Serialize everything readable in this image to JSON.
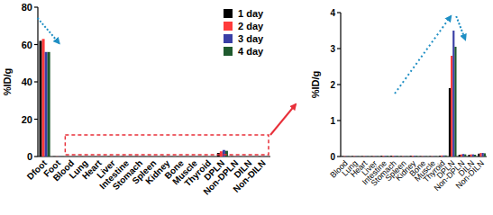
{
  "chart_data": [
    {
      "type": "bar",
      "y_label": "%ID/g",
      "categories": [
        "Dfoot",
        "Foot",
        "Blood",
        "Lung",
        "Heart",
        "Liver",
        "Intestine",
        "Stomach",
        "Spleen",
        "Kidney",
        "Bone",
        "Muscle",
        "Thyroid",
        "DPLN",
        "Non-DPLN",
        "DILN",
        "Non-DILN"
      ],
      "series": [
        {
          "name": "1 day",
          "color": "#000000",
          "values": [
            62,
            0.1,
            0.05,
            0.05,
            0.05,
            0.1,
            0.1,
            0.1,
            0.05,
            0.1,
            0.05,
            0.05,
            0.05,
            1.9,
            0.1,
            0.05,
            0.1
          ]
        },
        {
          "name": "2 day",
          "color": "#ff3b3b",
          "values": [
            63,
            0.1,
            0.05,
            0.05,
            0.05,
            0.1,
            0.1,
            0.1,
            0.05,
            0.1,
            0.05,
            0.05,
            0.05,
            2.8,
            0.1,
            0.05,
            0.1
          ]
        },
        {
          "name": "3 day",
          "color": "#3a3fa6",
          "values": [
            56,
            0.1,
            0.05,
            0.05,
            0.05,
            0.1,
            0.1,
            0.1,
            0.05,
            0.1,
            0.05,
            0.05,
            0.05,
            3.5,
            0.1,
            0.05,
            0.1
          ]
        },
        {
          "name": "4 day",
          "color": "#1f5a2e",
          "values": [
            56,
            0.1,
            0.05,
            0.05,
            0.05,
            0.1,
            0.1,
            0.1,
            0.05,
            0.1,
            0.05,
            0.05,
            0.05,
            3.05,
            0.1,
            0.05,
            0.1
          ]
        }
      ],
      "ylim": [
        0,
        80
      ],
      "yticks": [
        0,
        20,
        40,
        60,
        80
      ],
      "legend": "upper right"
    },
    {
      "type": "bar",
      "y_label": "%ID/g",
      "categories": [
        "Blood",
        "Lung",
        "Heart",
        "Liver",
        "Intestine",
        "Stomach",
        "Spleen",
        "Kidney",
        "Bone",
        "Muscle",
        "Thyroid",
        "DPLN",
        "Non-DPLN",
        "DILN",
        "Non-DILN"
      ],
      "series": [
        {
          "color": "#000000",
          "values": [
            0.01,
            0.01,
            0.01,
            0.01,
            0.02,
            0.02,
            0.01,
            0.02,
            0.01,
            0.01,
            0.02,
            1.9,
            0.05,
            0.05,
            0.08
          ]
        },
        {
          "color": "#ff3b3b",
          "values": [
            0.01,
            0.01,
            0.01,
            0.01,
            0.02,
            0.02,
            0.01,
            0.02,
            0.01,
            0.01,
            0.03,
            2.8,
            0.06,
            0.06,
            0.1
          ]
        },
        {
          "color": "#3a3fa6",
          "values": [
            0.01,
            0.01,
            0.01,
            0.01,
            0.02,
            0.02,
            0.01,
            0.02,
            0.01,
            0.01,
            0.03,
            3.5,
            0.07,
            0.06,
            0.1
          ]
        },
        {
          "color": "#1f5a2e",
          "values": [
            0.01,
            0.01,
            0.01,
            0.01,
            0.02,
            0.02,
            0.01,
            0.02,
            0.01,
            0.01,
            0.03,
            3.05,
            0.06,
            0.05,
            0.09
          ]
        }
      ],
      "ylim": [
        0,
        4
      ],
      "yticks": [
        0,
        1,
        2,
        3,
        4
      ]
    }
  ]
}
